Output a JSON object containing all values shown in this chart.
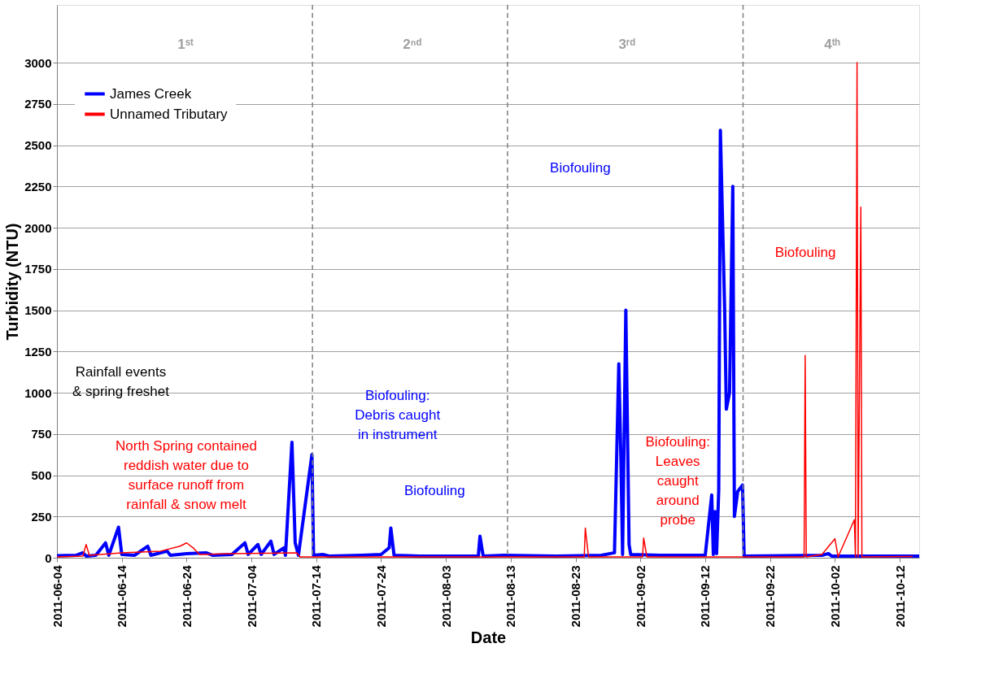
{
  "chart_data": {
    "type": "line",
    "xlabel": "Date",
    "ylabel": "Turbidity (NTU)",
    "xlim": [
      "2011-06-04",
      "2011-10-15"
    ],
    "ylim": [
      0,
      3350
    ],
    "xticks": [
      "2011-06-04",
      "2011-06-14",
      "2011-06-24",
      "2011-07-04",
      "2011-07-14",
      "2011-07-24",
      "2011-08-03",
      "2011-08-13",
      "2011-08-23",
      "2011-09-02",
      "2011-09-12",
      "2011-09-22",
      "2011-10-02",
      "2011-10-12"
    ],
    "yticks": [
      0,
      250,
      500,
      750,
      1000,
      1250,
      1500,
      1750,
      2000,
      2250,
      2500,
      2750,
      3000
    ],
    "grid": "y",
    "legend": "top left",
    "series": [
      {
        "name": "James Creek",
        "color": "#0000ff",
        "x": [
          "2011-06-04",
          "2011-06-07",
          "2011-06-08",
          "2011-06-08T12:00",
          "2011-06-10",
          "2011-06-11T12:00",
          "2011-06-12",
          "2011-06-13T12:00",
          "2011-06-14",
          "2011-06-16",
          "2011-06-18",
          "2011-06-18T12:00",
          "2011-06-21",
          "2011-06-21T12:00",
          "2011-06-24",
          "2011-06-27",
          "2011-06-28",
          "2011-07-01",
          "2011-07-03",
          "2011-07-03T12:00",
          "2011-07-05",
          "2011-07-05T12:00",
          "2011-07-07",
          "2011-07-07T12:00",
          "2011-07-09",
          "2011-07-09T06:00",
          "2011-07-10T06:00",
          "2011-07-10T18:00",
          "2011-07-11T06:00",
          "2011-07-13T08:00",
          "2011-07-13T14:00",
          "2011-07-15",
          "2011-07-16",
          "2011-07-21",
          "2011-07-24",
          "2011-07-25T06:00",
          "2011-07-25T12:00",
          "2011-07-26",
          "2011-07-30",
          "2011-08-08",
          "2011-08-08T06:00",
          "2011-08-08T18:00",
          "2011-08-12",
          "2011-08-20",
          "2011-08-27",
          "2011-08-29",
          "2011-08-29T16:00",
          "2011-08-30",
          "2011-08-30T06:00",
          "2011-08-30T18:00",
          "2011-08-31T06:00",
          "2011-08-31T12:00",
          "2011-09-05",
          "2011-09-12",
          "2011-09-13",
          "2011-09-13T06:00",
          "2011-09-13T12:00",
          "2011-09-13T18:00",
          "2011-09-14T02:00",
          "2011-09-14T08:00",
          "2011-09-15",
          "2011-09-15T06:00",
          "2011-09-15T18:00",
          "2011-09-16T06:00",
          "2011-09-16T12:00",
          "2011-09-17",
          "2011-09-17T18:00",
          "2011-09-18",
          "2011-09-30",
          "2011-10-01",
          "2011-10-01T12:00",
          "2011-10-15"
        ],
        "values": [
          12,
          15,
          30,
          10,
          15,
          90,
          15,
          185,
          20,
          15,
          70,
          15,
          40,
          15,
          25,
          30,
          15,
          20,
          90,
          20,
          80,
          20,
          100,
          20,
          60,
          15,
          700,
          90,
          15,
          625,
          15,
          20,
          10,
          15,
          20,
          60,
          180,
          15,
          10,
          10,
          130,
          10,
          15,
          10,
          15,
          30,
          1175,
          580,
          20,
          1500,
          80,
          20,
          15,
          15,
          380,
          20,
          280,
          25,
          410,
          2590,
          1500,
          900,
          1000,
          2250,
          250,
          400,
          440,
          10,
          15,
          25,
          10,
          10
        ]
      },
      {
        "name": "Unnamed Tributary",
        "color": "#ff0000",
        "x": [
          "2011-06-04",
          "2011-06-08",
          "2011-06-08T12:00",
          "2011-06-09",
          "2011-06-14",
          "2011-06-20",
          "2011-06-23",
          "2011-06-24",
          "2011-06-25",
          "2011-06-26",
          "2011-07-01",
          "2011-07-11",
          "2011-07-11T12:00",
          "2011-07-13",
          "2011-08-24",
          "2011-08-24T08:00",
          "2011-08-24T12:00",
          "2011-08-25",
          "2011-09-02T08:00",
          "2011-09-02T12:00",
          "2011-09-03",
          "2011-09-21",
          "2011-09-27T06:00",
          "2011-09-27T10:00",
          "2011-09-27T14:00",
          "2011-09-30",
          "2011-10-02",
          "2011-10-02T12:00",
          "2011-10-05",
          "2011-10-05T04:00",
          "2011-10-05T10:00",
          "2011-10-05T14:00",
          "2011-10-06",
          "2011-10-06T04:00",
          "2011-10-14"
        ],
        "values": [
          5,
          10,
          80,
          15,
          30,
          40,
          70,
          90,
          60,
          20,
          25,
          30,
          5,
          5,
          5,
          5,
          180,
          5,
          5,
          120,
          5,
          5,
          5,
          1225,
          5,
          20,
          115,
          5,
          230,
          5,
          3000,
          5,
          2125,
          5,
          8
        ]
      }
    ],
    "ref_lines": [
      {
        "axis": "x",
        "value": "2011-07-13T10:00",
        "label": null,
        "color": "#808080",
        "line_style": "dashed"
      },
      {
        "axis": "x",
        "value": "2011-08-12T12:00",
        "label": null,
        "color": "#808080",
        "line_style": "dashed"
      },
      {
        "axis": "x",
        "value": "2011-09-17T20:00",
        "label": null,
        "color": "#808080",
        "line_style": "dashed"
      }
    ],
    "annotations": [
      "1ˢᵗ",
      "2ⁿᵈ",
      "3ʳᵈ",
      "4ᵗʰ",
      "Rainfall events\n& spring freshet",
      "North Spring contained\nreddish water due to\nsurface runoff from\nrainfall & snow melt",
      "Biofouling:\nDebris caught\nin instrument",
      "Biofouling",
      "Biofouling",
      "Biofouling:\nLeaves\ncaught\naround\nprobe",
      "Biofouling"
    ]
  }
}
